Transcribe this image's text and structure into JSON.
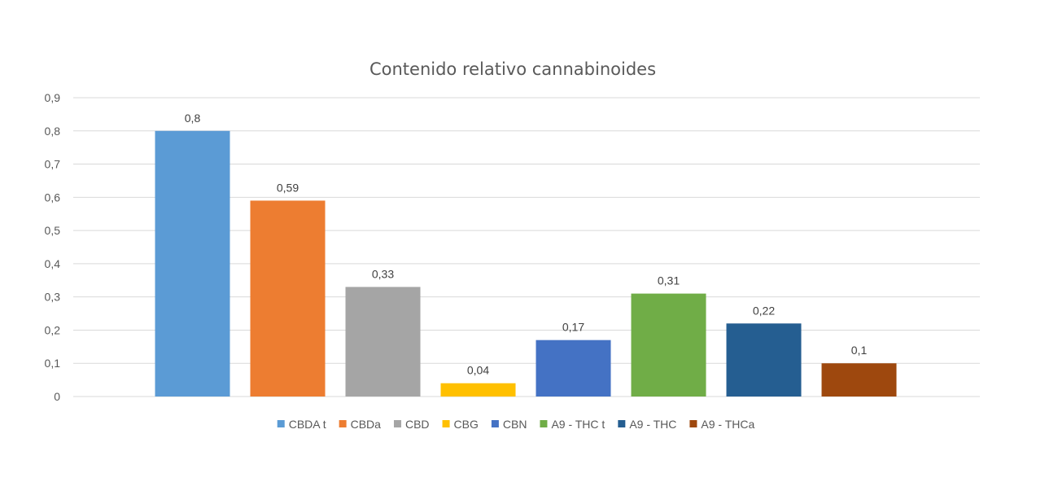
{
  "chart_data": {
    "type": "bar",
    "title": "Contenido relativo cannabinoides",
    "xlabel": "",
    "ylabel": "",
    "ylim": [
      0,
      0.9
    ],
    "y_ticks": [
      "0",
      "0,1",
      "0,2",
      "0,3",
      "0,4",
      "0,5",
      "0,6",
      "0,7",
      "0,8",
      "0,9"
    ],
    "grid": true,
    "legend_position": "bottom",
    "series": [
      {
        "name": "CBDA t",
        "value": 0.8,
        "label": "0,8",
        "color": "#5b9bd5"
      },
      {
        "name": "CBDa",
        "value": 0.59,
        "label": "0,59",
        "color": "#ed7d31"
      },
      {
        "name": "CBD",
        "value": 0.33,
        "label": "0,33",
        "color": "#a5a5a5"
      },
      {
        "name": "CBG",
        "value": 0.04,
        "label": "0,04",
        "color": "#ffc000"
      },
      {
        "name": "CBN",
        "value": 0.17,
        "label": "0,17",
        "color": "#4472c4"
      },
      {
        "name": "A9 - THC t",
        "value": 0.31,
        "label": "0,31",
        "color": "#70ad47"
      },
      {
        "name": "A9 - THC",
        "value": 0.22,
        "label": "0,22",
        "color": "#255e91"
      },
      {
        "name": "A9 - THCa",
        "value": 0.1,
        "label": "0,1",
        "color": "#9e480e"
      }
    ]
  }
}
